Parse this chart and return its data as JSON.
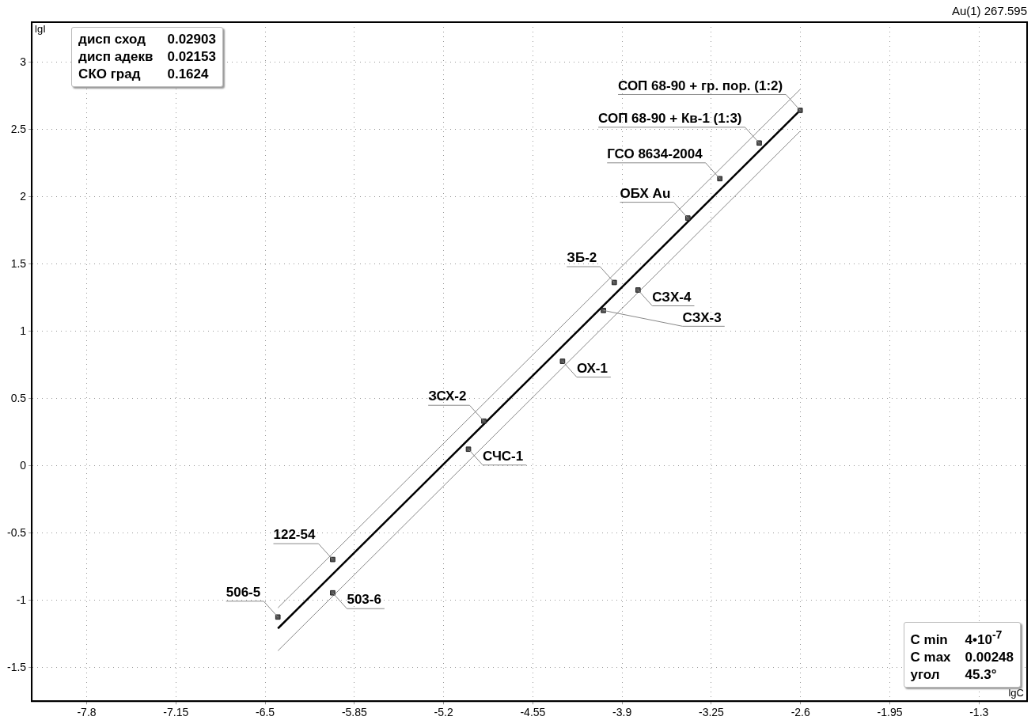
{
  "chart_data": {
    "type": "scatter",
    "title": "Au(1) 267.595",
    "xlabel": "lgC",
    "ylabel": "lgI",
    "xlim": [
      -8.2,
      -0.95
    ],
    "ylim": [
      -1.75,
      3.3
    ],
    "xticks": [
      -7.8,
      -7.15,
      -6.5,
      -5.85,
      -5.2,
      -4.55,
      -3.9,
      -3.25,
      -2.6,
      -1.95,
      -1.3
    ],
    "yticks": [
      -1.5,
      -1,
      -0.5,
      0,
      0.5,
      1,
      1.5,
      2,
      2.5,
      3
    ],
    "grid": true,
    "legend": false,
    "marker": "square",
    "series": [
      {
        "color": "#555555",
        "x": [
          -6.407,
          -6.008,
          -6.008,
          -4.907,
          -5.019,
          -4.334,
          -4.036,
          -3.784,
          -3.957,
          -3.421,
          -3.188,
          -2.901,
          -2.603
        ],
        "values": [
          -1.124,
          -0.696,
          -0.944,
          0.333,
          0.124,
          0.778,
          1.156,
          1.308,
          1.364,
          1.843,
          2.136,
          2.401,
          2.644
        ]
      },
      {
        "type": "line",
        "color": "#000000",
        "marker": "none",
        "x": [
          -6.407,
          -2.603
        ],
        "values": [
          -1.209,
          2.644
        ]
      },
      {
        "type": "line",
        "color": "#888888",
        "marker": "none",
        "x": [
          -6.407,
          -2.603
        ],
        "values": [
          -1.056,
          2.8
        ]
      },
      {
        "type": "line",
        "color": "#888888",
        "marker": "none",
        "x": [
          -6.407,
          -2.603
        ],
        "values": [
          -1.375,
          2.489
        ]
      }
    ],
    "annotations": [
      {
        "text": "506-5",
        "x": -6.407,
        "y": -1.124
      },
      {
        "text": "122-54",
        "x": -6.008,
        "y": -0.696
      },
      {
        "text": "503-6",
        "x": -6.008,
        "y": -0.944
      },
      {
        "text": "ЗСХ-2",
        "x": -4.907,
        "y": 0.333
      },
      {
        "text": "СЧС-1",
        "x": -5.019,
        "y": 0.124
      },
      {
        "text": "ОХ-1",
        "x": -4.334,
        "y": 0.778
      },
      {
        "text": "СЗХ-3",
        "x": -4.036,
        "y": 1.156
      },
      {
        "text": "СЗХ-4",
        "x": -3.784,
        "y": 1.308
      },
      {
        "text": "ЗБ-2",
        "x": -3.957,
        "y": 1.364
      },
      {
        "text": "ОБХ Au",
        "x": -3.421,
        "y": 1.843
      },
      {
        "text": "ГСО 8634-2004",
        "x": -3.188,
        "y": 2.136
      },
      {
        "text": "СОП 68-90 + Кв-1 (1:3)",
        "x": -2.901,
        "y": 2.401
      },
      {
        "text": "СОП 68-90 + гр. пор. (1:2)",
        "x": -2.603,
        "y": 2.644
      },
      "дисп сход",
      "0.02903",
      "дисп адекв",
      "0.02153",
      "СКО град",
      "0.1624",
      "C min",
      "4•10$^{-7}$",
      "C max",
      "0.00248",
      "угол",
      "45.3°"
    ]
  }
}
